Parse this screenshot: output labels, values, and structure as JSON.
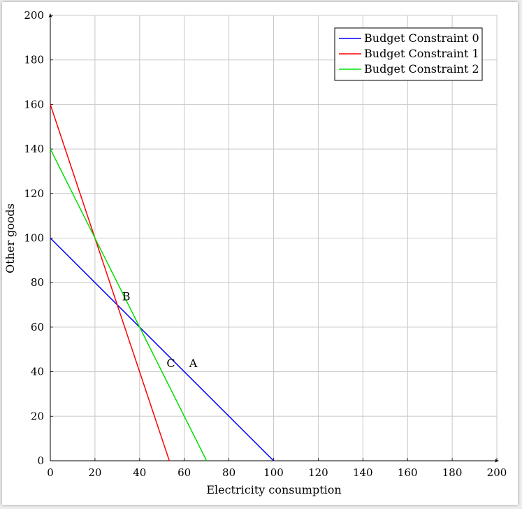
{
  "chart_data": {
    "type": "line",
    "title": "",
    "xlabel": "Electricity consumption",
    "ylabel": "Other goods",
    "xlim": [
      0,
      200
    ],
    "ylim": [
      0,
      200
    ],
    "x_ticks": [
      "0",
      "20",
      "40",
      "60",
      "80",
      "100",
      "120",
      "140",
      "160",
      "180",
      "200"
    ],
    "y_ticks": [
      "0",
      "20",
      "40",
      "60",
      "80",
      "100",
      "120",
      "140",
      "160",
      "180",
      "200"
    ],
    "grid": true,
    "legend_position": "top-right",
    "series": [
      {
        "name": "Budget Constraint 0",
        "color": "#0000ff",
        "x": [
          0,
          100
        ],
        "y": [
          100,
          0
        ]
      },
      {
        "name": "Budget Constraint 1",
        "color": "#ff0000",
        "x": [
          0,
          53.3
        ],
        "y": [
          160,
          0
        ]
      },
      {
        "name": "Budget Constraint 2",
        "color": "#00e000",
        "x": [
          0,
          70
        ],
        "y": [
          140,
          0
        ]
      }
    ],
    "annotations": [
      {
        "text": "A",
        "x": 64,
        "y": 44
      },
      {
        "text": "B",
        "x": 34,
        "y": 74
      },
      {
        "text": "C",
        "x": 54,
        "y": 44
      }
    ]
  }
}
